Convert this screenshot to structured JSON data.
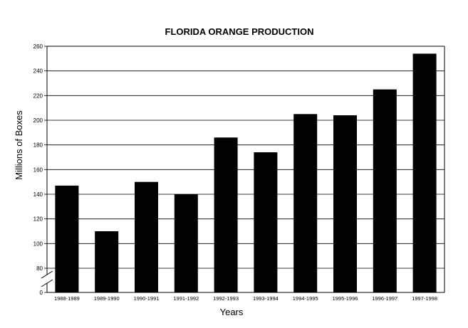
{
  "chart_data": {
    "type": "bar",
    "title": "FLORIDA ORANGE PRODUCTION",
    "xlabel": "Years",
    "ylabel": "Millions of Boxes",
    "categories": [
      "1988-1989",
      "1989-1990",
      "1990-1991",
      "1991-1992",
      "1992-1993",
      "1993-1994",
      "1994-1995",
      "1995-1996",
      "1996-1997",
      "1997-1998"
    ],
    "values": [
      147,
      110,
      150,
      140,
      186,
      174,
      205,
      204,
      225,
      254
    ],
    "y_ticks": [
      "0",
      "80",
      "100",
      "120",
      "140",
      "160",
      "180",
      "200",
      "220",
      "240",
      "260"
    ],
    "ylim": [
      80,
      260
    ],
    "axis_break": true,
    "grid": true,
    "bar_color": "#000000"
  }
}
